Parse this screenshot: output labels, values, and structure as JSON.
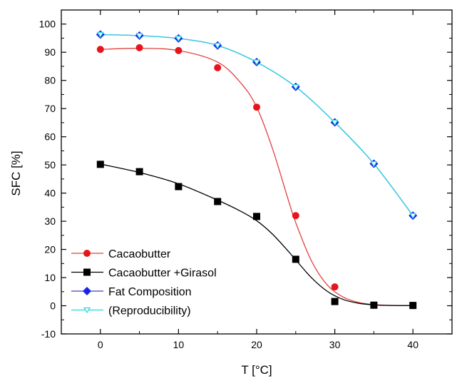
{
  "chart_data": {
    "type": "scatter",
    "title": "",
    "xlabel": "T [°C]",
    "ylabel": "SFC [%]",
    "xlim": [
      -5,
      45
    ],
    "ylim": [
      -10,
      105
    ],
    "xticks": [
      0,
      10,
      20,
      30,
      40
    ],
    "yticks": [
      -10,
      0,
      10,
      20,
      30,
      40,
      50,
      60,
      70,
      80,
      90,
      100
    ],
    "grid": false,
    "legend_position": "bottom-left",
    "series": [
      {
        "name": "Cacaobutter",
        "marker": "circle",
        "color": "#e8141b",
        "line_color": "#e0413f",
        "x": [
          0,
          5,
          10,
          15,
          20,
          25,
          30,
          35,
          40
        ],
        "y": [
          91,
          91.6,
          90.6,
          84.5,
          70.5,
          32,
          6.7,
          0.2,
          0.1
        ],
        "fit": [
          [
            0,
            91
          ],
          [
            5,
            91.4
          ],
          [
            10,
            90.6
          ],
          [
            15,
            86.5
          ],
          [
            18,
            79
          ],
          [
            20,
            70.5
          ],
          [
            22,
            56
          ],
          [
            24,
            38
          ],
          [
            25,
            29.5
          ],
          [
            27,
            16
          ],
          [
            29,
            7.5
          ],
          [
            31,
            3.2
          ],
          [
            33,
            1.2
          ],
          [
            35,
            0.4
          ],
          [
            37,
            0.15
          ],
          [
            40,
            0.05
          ]
        ]
      },
      {
        "name": "Cacaobutter +Girasol",
        "marker": "square",
        "color": "#000000",
        "line_color": "#000000",
        "x": [
          0,
          5,
          10,
          15,
          20,
          25,
          30,
          35,
          40
        ],
        "y": [
          50.2,
          47.6,
          42.3,
          37,
          31.7,
          16.5,
          1.5,
          0.2,
          0.1
        ],
        "fit": [
          [
            0,
            50.3
          ],
          [
            5,
            47.3
          ],
          [
            10,
            43.3
          ],
          [
            15,
            37.5
          ],
          [
            18,
            33.5
          ],
          [
            20,
            30.2
          ],
          [
            22,
            25.5
          ],
          [
            24,
            19.5
          ],
          [
            25,
            16.3
          ],
          [
            27,
            10
          ],
          [
            29,
            5.2
          ],
          [
            31,
            2.3
          ],
          [
            33,
            0.9
          ],
          [
            35,
            0.3
          ],
          [
            37,
            0.1
          ],
          [
            40,
            0.05
          ]
        ]
      },
      {
        "name": "Fat Composition",
        "marker": "diamond",
        "color": "#1a22e6",
        "line_color": "#3b3fd4",
        "x": [
          0,
          5,
          10,
          15,
          20,
          25,
          30,
          35,
          40
        ],
        "y": [
          96.3,
          95.9,
          94.9,
          92.4,
          86.5,
          77.7,
          65.1,
          50.4,
          32
        ],
        "fit": [
          [
            0,
            96.3
          ],
          [
            5,
            95.9
          ],
          [
            10,
            94.9
          ],
          [
            15,
            92.4
          ],
          [
            20,
            86.5
          ],
          [
            25,
            77.7
          ],
          [
            30,
            65.1
          ],
          [
            35,
            50.4
          ],
          [
            40,
            32
          ]
        ]
      },
      {
        "name": "(Reproducibility)",
        "marker": "triangle-down-open",
        "color": "#2fd3e0",
        "line_color": "#2fd3e0",
        "x": [
          0,
          5,
          10,
          15,
          20,
          25,
          30,
          35,
          40
        ],
        "y": [
          96.3,
          95.9,
          94.9,
          92.4,
          86.5,
          77.7,
          65.1,
          50.4,
          32
        ],
        "fit": [
          [
            0,
            96.3
          ],
          [
            5,
            95.9
          ],
          [
            10,
            94.9
          ],
          [
            15,
            92.4
          ],
          [
            20,
            86.5
          ],
          [
            25,
            77.7
          ],
          [
            30,
            65.1
          ],
          [
            35,
            50.4
          ],
          [
            40,
            32
          ]
        ]
      }
    ]
  }
}
